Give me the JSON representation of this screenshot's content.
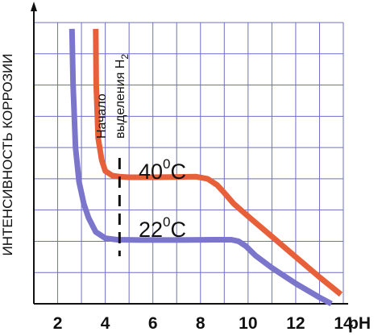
{
  "chart_data": {
    "type": "line",
    "title": "",
    "xlabel": "pH",
    "ylabel": "ИНТЕНСИВНОСТЬ КОРРОЗИИ",
    "xlim": [
      1,
      14
    ],
    "ylim": [
      0,
      9
    ],
    "x_ticks": [
      "2",
      "4",
      "6",
      "8",
      "10",
      "12",
      "14"
    ],
    "grid": true,
    "series": [
      {
        "name": "40°C",
        "color": "#e8603a",
        "x": [
          3.6,
          3.62,
          3.7,
          3.85,
          4.0,
          4.3,
          4.6,
          5.0,
          6.0,
          7.0,
          7.8,
          8.3,
          8.7,
          9.0,
          9.4,
          10.0,
          11.0,
          12.0,
          13.0,
          13.9
        ],
        "y": [
          8.8,
          7.0,
          5.3,
          4.6,
          4.25,
          4.1,
          4.07,
          4.05,
          4.05,
          4.06,
          4.07,
          4.0,
          3.8,
          3.55,
          3.2,
          2.8,
          2.15,
          1.5,
          0.85,
          0.3
        ]
      },
      {
        "name": "22°C",
        "color": "#7b76cc",
        "x": [
          2.6,
          2.65,
          2.75,
          2.9,
          3.1,
          3.3,
          3.6,
          4.0,
          4.5,
          5.5,
          7.0,
          8.5,
          9.3,
          9.6,
          9.9,
          10.3,
          11.0,
          12.0,
          13.0,
          13.5
        ],
        "y": [
          8.8,
          7.0,
          5.0,
          3.9,
          3.2,
          2.75,
          2.3,
          2.1,
          2.05,
          2.04,
          2.04,
          2.05,
          2.05,
          2.0,
          1.85,
          1.55,
          1.15,
          0.65,
          0.2,
          0.0
        ]
      }
    ],
    "annotations": {
      "line_pH": 4.6,
      "line_text_1": "Начало",
      "line_text_2": "выделения H",
      "line_text_sub": "2",
      "label_40_main": "40",
      "label_40_sup": "0",
      "label_40_unit": "C",
      "label_22_main": "22",
      "label_22_sup": "0",
      "label_22_unit": "C"
    }
  }
}
